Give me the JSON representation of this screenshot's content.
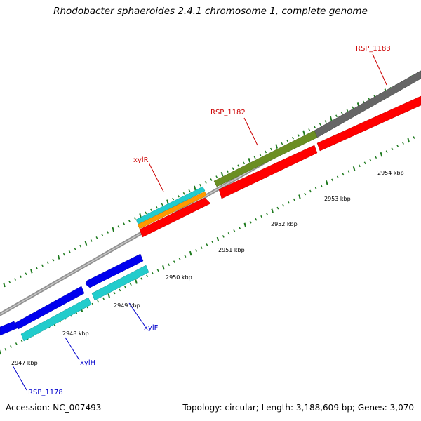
{
  "title": "Rhodobacter sphaeroides 2.4.1 chromosome 1, complete genome",
  "footer": {
    "accession": "Accession: NC_007493",
    "stats": "Topology: circular; Length: 3,188,609 bp; Genes: 3,070"
  },
  "kbp_labels": [
    "2947 kbp",
    "2948 kbp",
    "2949 kbp",
    "2950 kbp",
    "2951 kbp",
    "2952 kbp",
    "2953 kbp",
    "2954 kbp"
  ],
  "gene_labels": [
    {
      "name": "RSP_1183",
      "color": "#cc0000"
    },
    {
      "name": "RSP_1182",
      "color": "#cc0000"
    },
    {
      "name": "xylR",
      "color": "#cc0000"
    },
    {
      "name": "xylF",
      "color": "#0000cc"
    },
    {
      "name": "xylH",
      "color": "#0000cc"
    },
    {
      "name": "RSP_1178",
      "color": "#0000cc"
    }
  ],
  "colors": {
    "backbone": "#808080",
    "tick": "#1e7a1e",
    "cds": "#ff0000",
    "forward_gene": "#0000ee",
    "reverse_gene": "#22cccc",
    "xylR_track": "#ff9900",
    "rsp1182_track": "#6b8e23",
    "rsp1183_track": "#666666"
  }
}
